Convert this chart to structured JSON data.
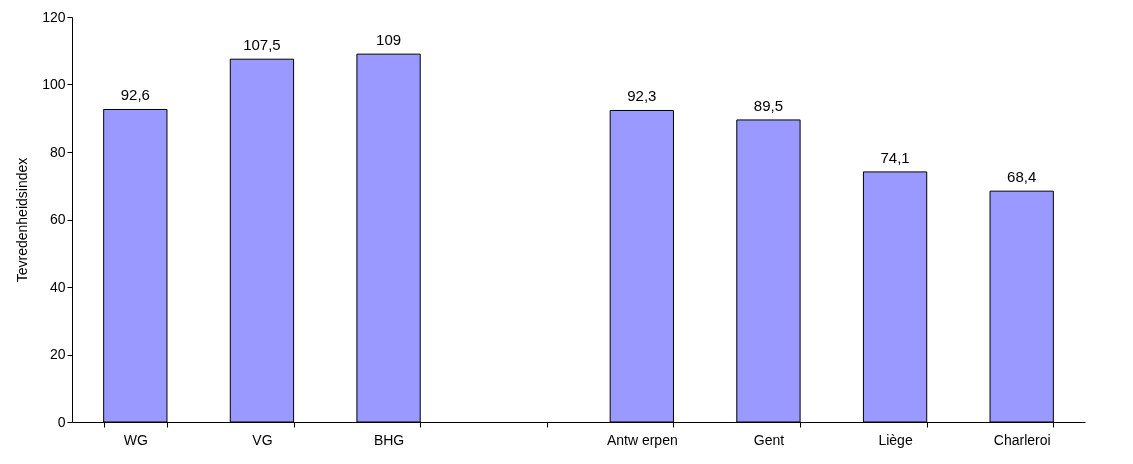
{
  "chart_data": {
    "type": "bar",
    "ylabel": "Tevredenheidsindex",
    "categories": [
      "WG",
      "VG",
      "BHG",
      null,
      "Antw erpen",
      "Gent",
      "Liège",
      "Charleroi"
    ],
    "values": [
      92.6,
      107.5,
      109,
      null,
      92.3,
      89.5,
      74.1,
      68.4
    ],
    "value_labels": [
      "92,6",
      "107,5",
      "109",
      null,
      "92,3",
      "89,5",
      "74,1",
      "68,4"
    ],
    "color": "#9999ff",
    "ylim": [
      0,
      120
    ],
    "yticks": [
      0,
      20,
      40,
      60,
      80,
      100,
      120
    ],
    "grid": false
  }
}
